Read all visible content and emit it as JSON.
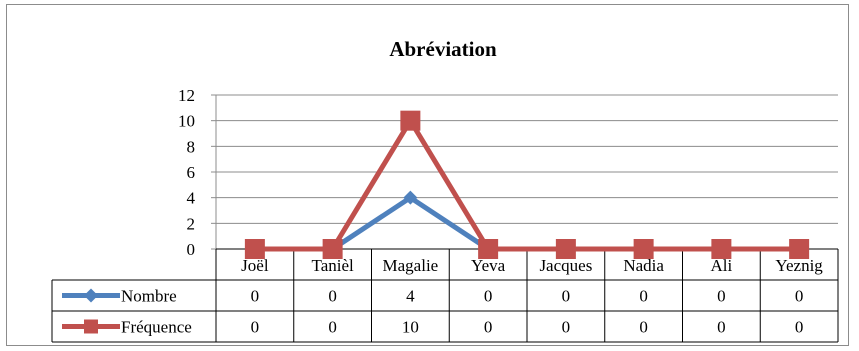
{
  "chart_data": {
    "type": "line",
    "title": "Abréviation",
    "categories": [
      "Joël",
      "Tanièl",
      "Magalie",
      "Yeva",
      "Jacques",
      "Nadia",
      "Ali",
      "Yeznig"
    ],
    "series": [
      {
        "name": "Nombre",
        "values": [
          0,
          0,
          4,
          0,
          0,
          0,
          0,
          0
        ],
        "color": "#4f81bd",
        "marker": "diamond"
      },
      {
        "name": "Fréquence",
        "values": [
          0,
          0,
          10,
          0,
          0,
          0,
          0,
          0
        ],
        "color": "#c0504d",
        "marker": "square"
      }
    ],
    "ylim": [
      0,
      12
    ],
    "yticks": [
      0,
      2,
      4,
      6,
      8,
      10,
      12
    ],
    "grid": true,
    "legend": "data-table-left",
    "data_table": true
  }
}
